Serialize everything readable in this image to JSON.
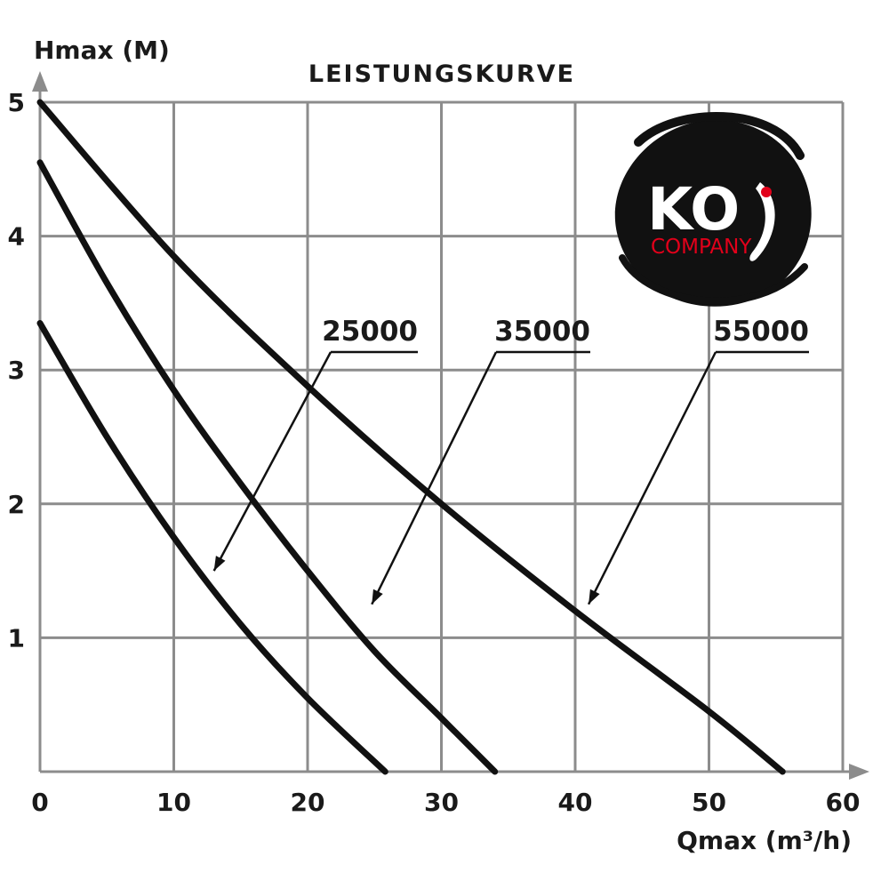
{
  "chart_data": {
    "type": "line",
    "title": "LEISTUNGSKURVE",
    "xlabel": "Qmax (m³/h)",
    "ylabel": "Hmax (M)",
    "xlim": [
      0,
      60
    ],
    "ylim": [
      0,
      5
    ],
    "x_ticks": [
      "0",
      "10",
      "20",
      "30",
      "40",
      "50",
      "60"
    ],
    "y_ticks": [
      "1",
      "2",
      "3",
      "4",
      "5"
    ],
    "grid": true,
    "colors": {
      "curve": "#111111",
      "grid": "#8c8c8c",
      "axis": "#8c8c8c",
      "logo_bg": "#111111",
      "logo_accent": "#e2001a"
    },
    "series": [
      {
        "name": "25000",
        "points": [
          [
            0,
            3.35
          ],
          [
            5,
            2.5
          ],
          [
            10,
            1.75
          ],
          [
            15,
            1.1
          ],
          [
            20,
            0.55
          ],
          [
            25.8,
            0
          ]
        ]
      },
      {
        "name": "35000",
        "points": [
          [
            0,
            4.55
          ],
          [
            5,
            3.65
          ],
          [
            10,
            2.85
          ],
          [
            15,
            2.15
          ],
          [
            20,
            1.5
          ],
          [
            25,
            0.9
          ],
          [
            30,
            0.4
          ],
          [
            34,
            0
          ]
        ]
      },
      {
        "name": "55000",
        "points": [
          [
            0,
            5.0
          ],
          [
            10,
            3.85
          ],
          [
            20,
            2.88
          ],
          [
            30,
            2.0
          ],
          [
            40,
            1.2
          ],
          [
            50,
            0.45
          ],
          [
            55.5,
            0
          ]
        ]
      }
    ],
    "annotations": [
      {
        "label": "25000",
        "arrow_to": [
          13,
          1.5
        ]
      },
      {
        "label": "35000",
        "arrow_to": [
          24.8,
          1.25
        ]
      },
      {
        "label": "55000",
        "arrow_to": [
          41,
          1.25
        ]
      }
    ]
  },
  "logo": {
    "text": "KO",
    "subtext": "COMPANY"
  }
}
